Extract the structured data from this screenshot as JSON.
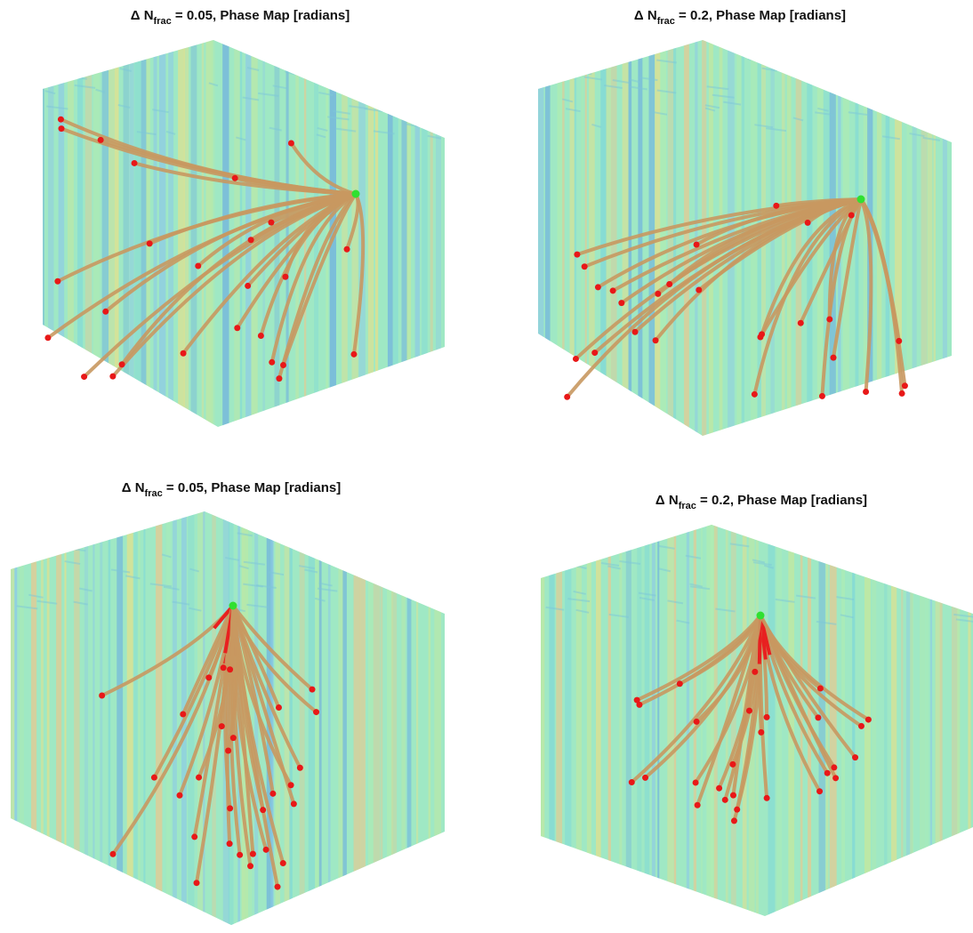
{
  "panels": [
    {
      "title": {
        "prefix": "Δ N",
        "sub": "frac",
        "rest": " = 0.05, Phase Map [radians]"
      }
    },
    {
      "title": {
        "prefix": "Δ N",
        "sub": "frac",
        "rest": " = 0.2, Phase Map [radians]"
      }
    },
    {
      "title": {
        "prefix": "Δ N",
        "sub": "frac",
        "rest": " = 0.05, Phase Map [radians]"
      }
    },
    {
      "title": {
        "prefix": "Δ N",
        "sub": "frac",
        "rest": " = 0.2, Phase Map [radians]"
      }
    }
  ]
}
